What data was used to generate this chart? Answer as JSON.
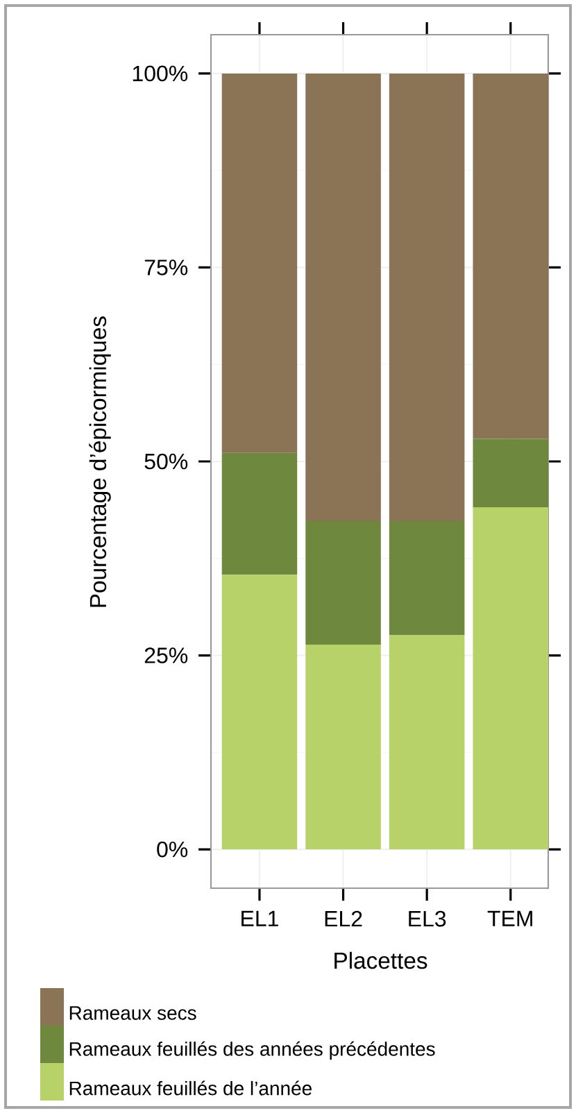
{
  "chart_data": {
    "type": "bar",
    "stacked": true,
    "categories": [
      "EL1",
      "EL2",
      "EL3",
      "TEM"
    ],
    "xlabel": "Placettes",
    "ylabel": "Pourcentage d’épicormiques",
    "ylim": [
      -5,
      105
    ],
    "yticks": [
      {
        "value": 0,
        "label": "0%"
      },
      {
        "value": 25,
        "label": "25%"
      },
      {
        "value": 50,
        "label": "50%"
      },
      {
        "value": 75,
        "label": "75%"
      },
      {
        "value": 100,
        "label": "100%"
      }
    ],
    "grid": true,
    "legend": "bottom",
    "series": [
      {
        "name": "Rameaux feuillés de l’année",
        "color": "#b8d26a",
        "values": [
          35.4,
          26.4,
          27.6,
          44.1
        ]
      },
      {
        "name": "Rameaux feuillés des années précédentes",
        "color": "#6e883d",
        "values": [
          15.7,
          15.9,
          14.7,
          8.8
        ]
      },
      {
        "name": "Rameaux secs",
        "color": "#8b7355",
        "values": [
          48.9,
          57.7,
          57.7,
          47.1
        ]
      }
    ]
  }
}
